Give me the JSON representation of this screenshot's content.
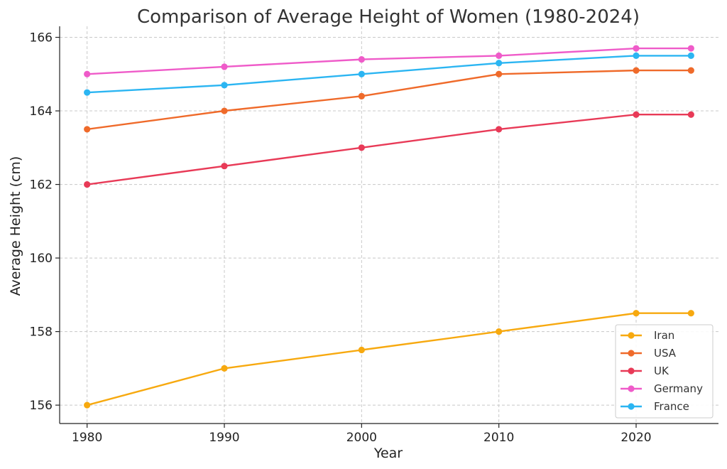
{
  "chart_data": {
    "type": "line",
    "title": "Comparison of Average Height of Women (1980-2024)",
    "xlabel": "Year",
    "ylabel": "Average Height (cm)",
    "x": [
      1980,
      1990,
      2000,
      2010,
      2020,
      2024
    ],
    "xlim": [
      1978,
      2026
    ],
    "ylim": [
      155.5,
      166.3
    ],
    "xticks": [
      1980,
      1990,
      2000,
      2010,
      2020
    ],
    "yticks": [
      156,
      158,
      160,
      162,
      164,
      166
    ],
    "grid": true,
    "legend_position": "bottom-right",
    "series": [
      {
        "name": "Iran",
        "color": "#f7a90f",
        "values": [
          156.0,
          157.0,
          157.5,
          158.0,
          158.5,
          158.5
        ]
      },
      {
        "name": "USA",
        "color": "#ef6a2a",
        "values": [
          163.5,
          164.0,
          164.4,
          165.0,
          165.1,
          165.1
        ]
      },
      {
        "name": "UK",
        "color": "#e83a57",
        "values": [
          162.0,
          162.5,
          163.0,
          163.5,
          163.9,
          163.9
        ]
      },
      {
        "name": "Germany",
        "color": "#ef5bc9",
        "values": [
          165.0,
          165.2,
          165.4,
          165.5,
          165.7,
          165.7
        ]
      },
      {
        "name": "France",
        "color": "#2bb5f2",
        "values": [
          164.5,
          164.7,
          165.0,
          165.3,
          165.5,
          165.5
        ]
      }
    ]
  }
}
